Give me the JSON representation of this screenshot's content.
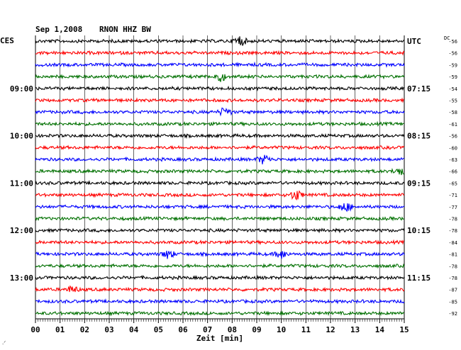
{
  "header": {
    "date": "Sep 1,2008",
    "station": "RNON HHZ BW",
    "left_zone": "CES",
    "right_zone": "UTC",
    "dc_label": "DC"
  },
  "chart_data": {
    "type": "line",
    "title": "Sep 1,2008   RNON HHZ BW",
    "xlabel": "Zeit [min]",
    "xlim": [
      0,
      15
    ],
    "x_ticks": [
      "00",
      "01",
      "02",
      "03",
      "04",
      "05",
      "06",
      "07",
      "08",
      "09",
      "10",
      "11",
      "12",
      "13",
      "14",
      "15"
    ],
    "left_hour_labels": [
      {
        "row": 4,
        "label": "09:00"
      },
      {
        "row": 8,
        "label": "10:00"
      },
      {
        "row": 12,
        "label": "11:00"
      },
      {
        "row": 16,
        "label": "12:00"
      },
      {
        "row": 20,
        "label": "13:00"
      }
    ],
    "right_hour_labels": [
      {
        "row": 0,
        "label": "UTC"
      },
      {
        "row": 4,
        "label": "07:15"
      },
      {
        "row": 8,
        "label": "08:15"
      },
      {
        "row": 12,
        "label": "09:15"
      },
      {
        "row": 16,
        "label": "10:15"
      },
      {
        "row": 20,
        "label": "11:15"
      }
    ],
    "trace_colors": [
      "#000000",
      "#ff0000",
      "#0000ff",
      "#007000"
    ],
    "dc_offsets": [
      -56,
      -56,
      -59,
      -59,
      -54,
      -55,
      -58,
      -61,
      -56,
      -60,
      -63,
      -66,
      -65,
      -71,
      -77,
      -78,
      -78,
      -84,
      -81,
      -78,
      -78,
      -87,
      -85,
      -92
    ],
    "events": [
      {
        "row": 0,
        "minute": 8.3,
        "amplitude": 2.2
      },
      {
        "row": 3,
        "minute": 7.5,
        "amplitude": 2.0
      },
      {
        "row": 6,
        "minute": 7.7,
        "amplitude": 1.8
      },
      {
        "row": 10,
        "minute": 9.3,
        "amplitude": 2.0
      },
      {
        "row": 11,
        "minute": 14.8,
        "amplitude": 1.6
      },
      {
        "row": 13,
        "minute": 10.6,
        "amplitude": 2.2
      },
      {
        "row": 14,
        "minute": 12.6,
        "amplitude": 2.0
      },
      {
        "row": 18,
        "minute": 5.4,
        "amplitude": 1.8
      },
      {
        "row": 18,
        "minute": 10.0,
        "amplitude": 1.8
      },
      {
        "row": 21,
        "minute": 1.5,
        "amplitude": 1.4
      }
    ]
  }
}
